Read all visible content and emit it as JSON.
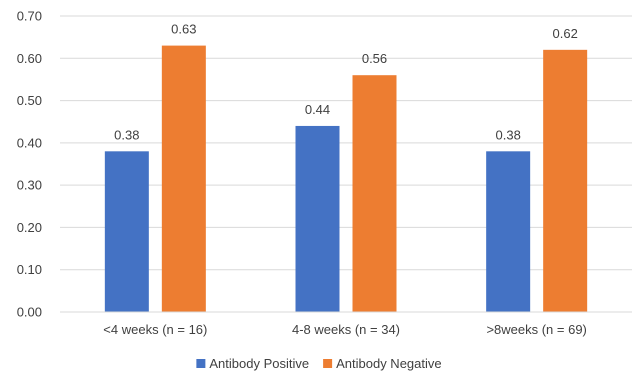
{
  "chart_data": {
    "type": "bar",
    "categories": [
      "<4 weeks (n = 16)",
      "4-8 weeks (n = 34)",
      ">8weeks (n = 69)"
    ],
    "series": [
      {
        "name": "Antibody Positive",
        "values": [
          0.38,
          0.44,
          0.38
        ],
        "labels": [
          "0.38",
          "0.44",
          "0.38"
        ],
        "color": "#4472C4"
      },
      {
        "name": "Antibody Negative",
        "values": [
          0.63,
          0.56,
          0.62
        ],
        "labels": [
          "0.63",
          "0.56",
          "0.62"
        ],
        "color": "#ED7D31"
      }
    ],
    "ylim": [
      0,
      0.7
    ],
    "yticks": [
      "0.00",
      "0.10",
      "0.20",
      "0.30",
      "0.40",
      "0.50",
      "0.60",
      "0.70"
    ],
    "title": "",
    "xlabel": "",
    "ylabel": "",
    "grid": true,
    "gridline_color": "#D9D9D9",
    "legend_position": "bottom"
  }
}
